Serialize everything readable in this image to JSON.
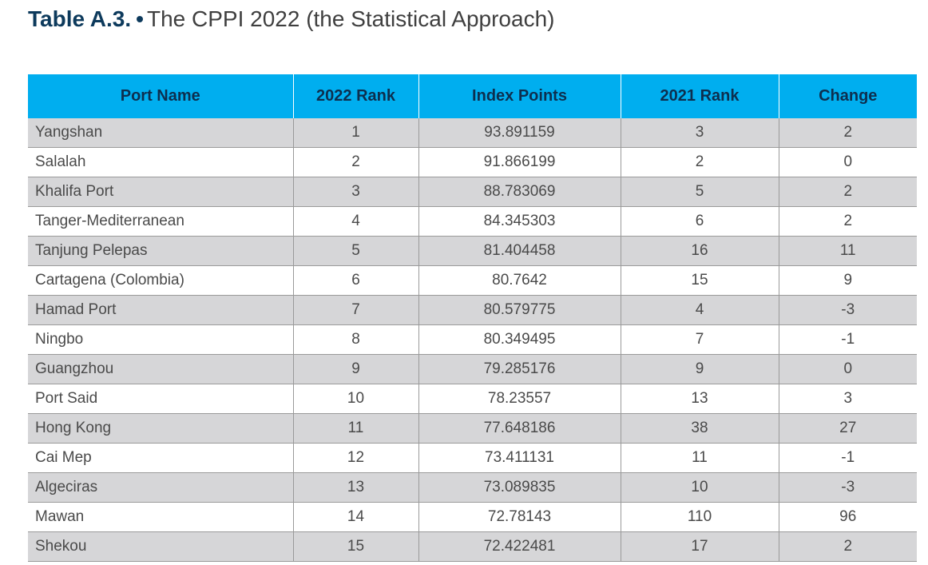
{
  "title": {
    "label": "Table A.3.",
    "bullet": "•",
    "text": "The CPPI 2022 (the Statistical Approach)"
  },
  "table": {
    "headers": [
      "Port Name",
      "2022 Rank",
      "Index Points",
      "2021 Rank",
      "Change"
    ],
    "rows": [
      [
        "Yangshan",
        "1",
        "93.891159",
        "3",
        "2"
      ],
      [
        "Salalah",
        "2",
        "91.866199",
        "2",
        "0"
      ],
      [
        "Khalifa Port",
        "3",
        "88.783069",
        "5",
        "2"
      ],
      [
        "Tanger-Mediterranean",
        "4",
        "84.345303",
        "6",
        "2"
      ],
      [
        "Tanjung Pelepas",
        "5",
        "81.404458",
        "16",
        "11"
      ],
      [
        "Cartagena (Colombia)",
        "6",
        "80.7642",
        "15",
        "9"
      ],
      [
        "Hamad Port",
        "7",
        "80.579775",
        "4",
        "-3"
      ],
      [
        "Ningbo",
        "8",
        "80.349495",
        "7",
        "-1"
      ],
      [
        "Guangzhou",
        "9",
        "79.285176",
        "9",
        "0"
      ],
      [
        "Port Said",
        "10",
        "78.23557",
        "13",
        "3"
      ],
      [
        "Hong Kong",
        "11",
        "77.648186",
        "38",
        "27"
      ],
      [
        "Cai Mep",
        "12",
        "73.411131",
        "11",
        "-1"
      ],
      [
        "Algeciras",
        "13",
        "73.089835",
        "10",
        "-3"
      ],
      [
        "Mawan",
        "14",
        "72.78143",
        "110",
        "96"
      ],
      [
        "Shekou",
        "15",
        "72.422481",
        "17",
        "2"
      ]
    ]
  }
}
